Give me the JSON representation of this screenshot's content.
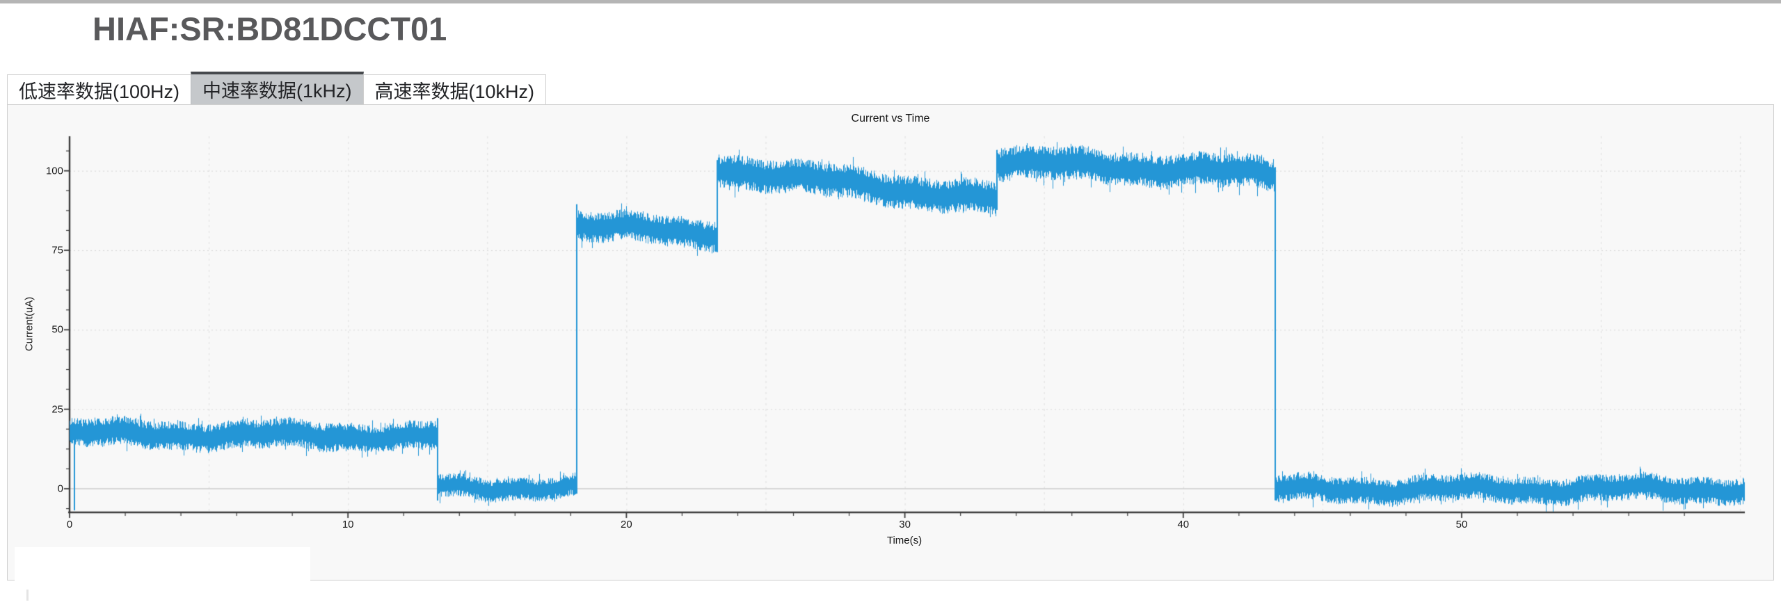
{
  "window": {
    "title": "HIAF:SR:BD81DCCT01"
  },
  "tabs": {
    "items": [
      {
        "label": "低速率数据(100Hz)",
        "active": false
      },
      {
        "label": "中速率数据(1kHz)",
        "active": true
      },
      {
        "label": "高速率数据(10kHz)",
        "active": false
      }
    ]
  },
  "chart_data": {
    "type": "line",
    "title": "Current vs Time",
    "xlabel": "Time(s)",
    "ylabel": "Current(uA)",
    "x_ticks": [
      0,
      10,
      20,
      30,
      40,
      50
    ],
    "y_ticks": [
      0,
      25,
      50,
      75,
      100
    ],
    "xlim": [
      0,
      60.2
    ],
    "ylim": [
      -7.5,
      110
    ],
    "grid": {
      "vertical_dashed_every_s": 5,
      "horizontal_dotted_at": [
        25,
        50,
        75,
        100
      ],
      "zero_line": true
    },
    "legend": "none",
    "series_color": "#2496d6",
    "description": "Dense 1kHz noisy current signal with step levels",
    "segments": [
      {
        "t_start": 0.0,
        "t_end": 13.2,
        "level_start": 17.3,
        "level_end": 16.4,
        "noise_half_width": 4.6
      },
      {
        "t_start": 13.2,
        "t_end": 18.2,
        "level_start": 0.4,
        "level_end": 0.3,
        "noise_half_width": 3.7
      },
      {
        "t_start": 18.2,
        "t_end": 23.25,
        "level_start": 82.6,
        "level_end": 80.4,
        "noise_half_width": 4.9
      },
      {
        "t_start": 23.25,
        "t_end": 33.3,
        "level_start": 100.8,
        "level_end": 90.6,
        "noise_half_width": 5.4
      },
      {
        "t_start": 33.3,
        "t_end": 43.3,
        "level_start": 102.8,
        "level_end": 98.9,
        "noise_half_width": 5.4
      },
      {
        "t_start": 43.3,
        "t_end": 60.15,
        "level_start": -0.2,
        "level_end": -0.1,
        "noise_half_width": 4.3
      }
    ],
    "spike_down_at_t0": {
      "t": 0.15,
      "value": -6.8
    }
  }
}
